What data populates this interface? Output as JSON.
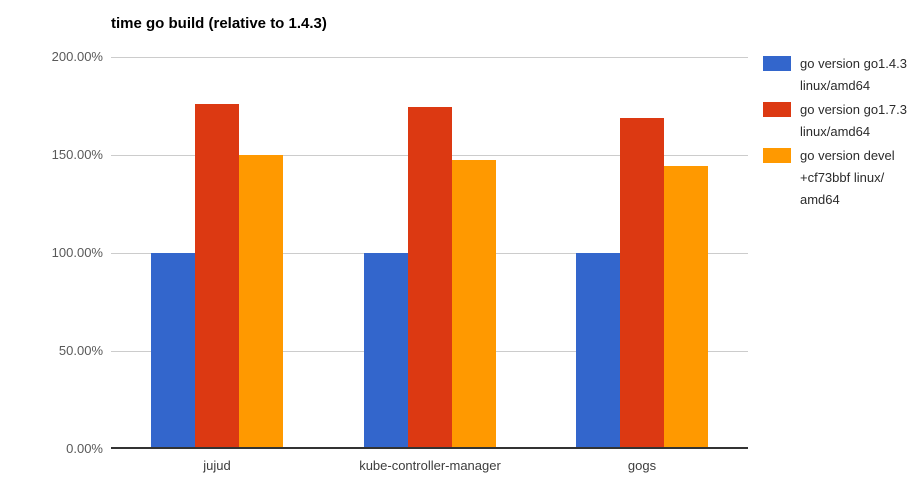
{
  "chart_data": {
    "type": "bar",
    "title": "time go build (relative to 1.4.3)",
    "categories": [
      "jujud",
      "kube-controller-manager",
      "gogs"
    ],
    "series": [
      {
        "name": "go version go1.4.3 linux/amd64",
        "legend_lines": [
          "go version go1.4.3",
          "linux/amd64"
        ],
        "color": "#3366cc",
        "values": [
          100,
          100,
          100
        ]
      },
      {
        "name": "go version go1.7.3 linux/amd64",
        "legend_lines": [
          "go version go1.7.3",
          "linux/amd64"
        ],
        "color": "#dc3912",
        "values": [
          176,
          174.6,
          169
        ]
      },
      {
        "name": "go version devel +cf73bbf linux/amd64",
        "legend_lines": [
          "go version devel",
          "+cf73bbf linux/",
          "amd64"
        ],
        "color": "#ff9900",
        "values": [
          150,
          147.6,
          144.4
        ]
      }
    ],
    "y_axis": {
      "tick_labels": [
        "0.00%",
        "50.00%",
        "100.00%",
        "150.00%",
        "200.00%"
      ],
      "tick_values": [
        0,
        50,
        100,
        150,
        200
      ],
      "min": 0,
      "max": 200,
      "unit": "%"
    },
    "xlabel": "",
    "ylabel": "",
    "legend_position": "right",
    "grid": true,
    "colors": {
      "grid": "#cccccc",
      "axis": "#333333",
      "background": "#ffffff"
    }
  }
}
